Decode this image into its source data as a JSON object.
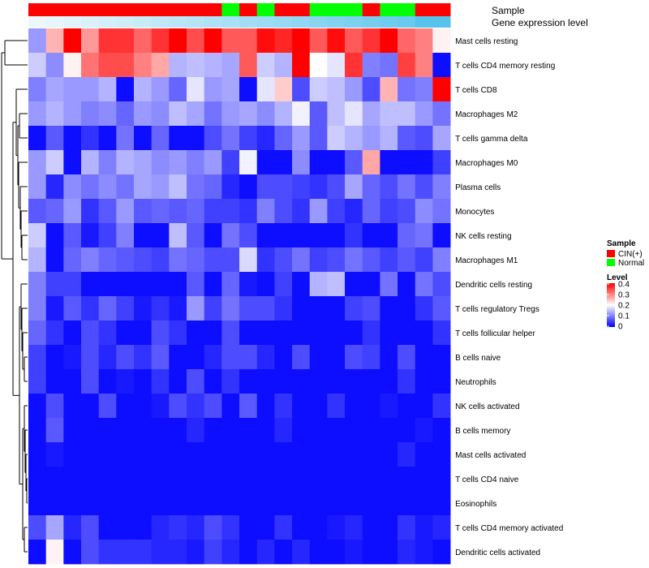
{
  "chart_data": {
    "type": "heatmap",
    "annotation_tracks": [
      {
        "name": "Sample",
        "values": [
          "CIN(+)",
          "CIN(+)",
          "CIN(+)",
          "CIN(+)",
          "CIN(+)",
          "CIN(+)",
          "CIN(+)",
          "CIN(+)",
          "CIN(+)",
          "CIN(+)",
          "CIN(+)",
          "Normal",
          "CIN(+)",
          "Normal",
          "CIN(+)",
          "CIN(+)",
          "Normal",
          "Normal",
          "Normal",
          "CIN(+)",
          "Normal",
          "Normal",
          "CIN(+)",
          "CIN(+)"
        ]
      },
      {
        "name": "Gene expression level",
        "values": [
          0.05,
          0.08,
          0.12,
          0.16,
          0.2,
          0.24,
          0.28,
          0.32,
          0.36,
          0.4,
          0.44,
          0.48,
          0.52,
          0.56,
          0.6,
          0.64,
          0.68,
          0.72,
          0.76,
          0.8,
          0.84,
          0.88,
          1.0,
          1.0
        ]
      }
    ],
    "rows": [
      "Mast cells resting",
      "T cells CD4 memory resting",
      "T cells CD8",
      "Macrophages M2",
      "T cells gamma delta",
      "Macrophages M0",
      "Plasma cells",
      "Monocytes",
      "NK cells resting",
      "Macrophages M1",
      "Dendritic cells resting",
      "T cells regulatory  Tregs",
      "T cells follicular helper",
      "B cells naive",
      "Neutrophils",
      "NK cells activated",
      "B cells memory",
      "Mast cells activated",
      "T cells CD4 naive",
      "Eosinophils",
      "T cells CD4 memory activated",
      "Dendritic cells activated"
    ],
    "values": [
      [
        0.12,
        0.26,
        0.4,
        0.28,
        0.36,
        0.36,
        0.32,
        0.36,
        0.4,
        0.34,
        0.4,
        0.33,
        0.33,
        0.39,
        0.37,
        0.41,
        0.33,
        0.39,
        0.33,
        0.36,
        0.4,
        0.32,
        0.3,
        0.21
      ],
      [
        0.16,
        0.11,
        0.21,
        0.31,
        0.34,
        0.34,
        0.3,
        0.27,
        0.14,
        0.15,
        0.14,
        0.13,
        0.33,
        0.16,
        0.14,
        0.4,
        0.2,
        0.18,
        0.36,
        0.1,
        0.09,
        0.35,
        0.3,
        0.01
      ],
      [
        0.1,
        0.13,
        0.12,
        0.12,
        0.14,
        0.01,
        0.14,
        0.12,
        0.08,
        0.18,
        0.12,
        0.13,
        0.01,
        0.18,
        0.24,
        0.06,
        0.16,
        0.15,
        0.12,
        0.06,
        0.26,
        0.09,
        0.1,
        0.4
      ],
      [
        0.12,
        0.14,
        0.12,
        0.1,
        0.11,
        0.08,
        0.12,
        0.11,
        0.15,
        0.13,
        0.09,
        0.12,
        0.13,
        0.11,
        0.14,
        0.19,
        0.07,
        0.15,
        0.18,
        0.13,
        0.15,
        0.15,
        0.12,
        0.09
      ],
      [
        0.01,
        0.07,
        0.01,
        0.04,
        0.01,
        0.09,
        0.01,
        0.08,
        0.01,
        0.01,
        0.06,
        0.09,
        0.05,
        0.03,
        0.08,
        0.12,
        0.07,
        0.16,
        0.14,
        0.12,
        0.14,
        0.07,
        0.06,
        0.13
      ],
      [
        0.12,
        0.16,
        0.01,
        0.14,
        0.1,
        0.14,
        0.13,
        0.11,
        0.12,
        0.1,
        0.12,
        0.05,
        0.19,
        0.01,
        0.01,
        0.11,
        0.01,
        0.01,
        0.07,
        0.27,
        0.01,
        0.01,
        0.01,
        0.05
      ],
      [
        0.12,
        0.03,
        0.11,
        0.09,
        0.11,
        0.09,
        0.13,
        0.12,
        0.15,
        0.09,
        0.08,
        0.03,
        0.01,
        0.06,
        0.06,
        0.05,
        0.04,
        0.06,
        0.13,
        0.08,
        0.06,
        0.09,
        0.06,
        0.1
      ],
      [
        0.07,
        0.08,
        0.12,
        0.04,
        0.07,
        0.12,
        0.07,
        0.08,
        0.07,
        0.08,
        0.05,
        0.05,
        0.04,
        0.1,
        0.06,
        0.04,
        0.12,
        0.05,
        0.03,
        0.08,
        0.05,
        0.06,
        0.11,
        0.09
      ],
      [
        0.16,
        0.01,
        0.07,
        0.02,
        0.05,
        0.1,
        0.01,
        0.01,
        0.15,
        0.07,
        0.01,
        0.09,
        0.06,
        0.01,
        0.01,
        0.01,
        0.01,
        0.01,
        0.04,
        0.01,
        0.01,
        0.08,
        0.09,
        0.01
      ],
      [
        0.14,
        0.01,
        0.08,
        0.1,
        0.08,
        0.07,
        0.06,
        0.05,
        0.09,
        0.08,
        0.06,
        0.06,
        0.17,
        0.04,
        0.06,
        0.09,
        0.05,
        0.06,
        0.09,
        0.07,
        0.05,
        0.07,
        0.05,
        0.1
      ],
      [
        0.1,
        0.05,
        0.05,
        0.01,
        0.01,
        0.01,
        0.01,
        0.01,
        0.01,
        0.07,
        0.01,
        0.08,
        0.02,
        0.01,
        0.05,
        0.01,
        0.14,
        0.15,
        0.01,
        0.01,
        0.09,
        0.01,
        0.09,
        0.06
      ],
      [
        0.1,
        0.02,
        0.07,
        0.04,
        0.08,
        0.05,
        0.02,
        0.04,
        0.02,
        0.12,
        0.05,
        0.09,
        0.06,
        0.06,
        0.04,
        0.01,
        0.01,
        0.01,
        0.05,
        0.06,
        0.01,
        0.01,
        0.04,
        0.07
      ],
      [
        0.08,
        0.04,
        0.01,
        0.06,
        0.04,
        0.01,
        0.01,
        0.06,
        0.04,
        0.01,
        0.01,
        0.06,
        0.01,
        0.01,
        0.01,
        0.01,
        0.01,
        0.01,
        0.01,
        0.04,
        0.01,
        0.01,
        0.01,
        0.04
      ],
      [
        0.05,
        0.01,
        0.02,
        0.06,
        0.03,
        0.06,
        0.04,
        0.07,
        0.01,
        0.01,
        0.03,
        0.06,
        0.06,
        0.03,
        0.01,
        0.06,
        0.01,
        0.01,
        0.06,
        0.05,
        0.01,
        0.06,
        0.01,
        0.01
      ],
      [
        0.05,
        0.01,
        0.01,
        0.06,
        0.01,
        0.02,
        0.01,
        0.04,
        0.01,
        0.06,
        0.01,
        0.04,
        0.01,
        0.01,
        0.01,
        0.01,
        0.01,
        0.01,
        0.01,
        0.01,
        0.01,
        0.04,
        0.01,
        0.01
      ],
      [
        0.01,
        0.06,
        0.01,
        0.01,
        0.06,
        0.01,
        0.01,
        0.02,
        0.06,
        0.04,
        0.06,
        0.01,
        0.07,
        0.01,
        0.04,
        0.01,
        0.01,
        0.04,
        0.01,
        0.01,
        0.02,
        0.01,
        0.01,
        0.04
      ],
      [
        0.01,
        0.07,
        0.01,
        0.01,
        0.01,
        0.01,
        0.01,
        0.01,
        0.01,
        0.03,
        0.01,
        0.01,
        0.01,
        0.01,
        0.03,
        0.01,
        0.01,
        0.01,
        0.01,
        0.01,
        0.01,
        0.01,
        0.02,
        0.01
      ],
      [
        0.01,
        0.02,
        0.01,
        0.01,
        0.01,
        0.01,
        0.01,
        0.01,
        0.01,
        0.01,
        0.01,
        0.01,
        0.01,
        0.01,
        0.01,
        0.01,
        0.01,
        0.01,
        0.01,
        0.01,
        0.01,
        0.03,
        0.01,
        0.01
      ],
      [
        0.01,
        0.01,
        0.01,
        0.01,
        0.01,
        0.01,
        0.01,
        0.01,
        0.01,
        0.01,
        0.01,
        0.01,
        0.01,
        0.01,
        0.01,
        0.01,
        0.01,
        0.01,
        0.01,
        0.01,
        0.01,
        0.01,
        0.01,
        0.01
      ],
      [
        0.01,
        0.01,
        0.01,
        0.01,
        0.01,
        0.01,
        0.01,
        0.01,
        0.01,
        0.01,
        0.01,
        0.01,
        0.01,
        0.01,
        0.01,
        0.01,
        0.01,
        0.01,
        0.01,
        0.01,
        0.01,
        0.01,
        0.01,
        0.01
      ],
      [
        0.06,
        0.13,
        0.03,
        0.06,
        0.01,
        0.01,
        0.01,
        0.03,
        0.04,
        0.03,
        0.06,
        0.04,
        0.01,
        0.01,
        0.04,
        0.01,
        0.01,
        0.02,
        0.03,
        0.01,
        0.01,
        0.04,
        0.02,
        0.03
      ],
      [
        0.01,
        0.21,
        0.01,
        0.06,
        0.04,
        0.04,
        0.04,
        0.03,
        0.03,
        0.02,
        0.05,
        0.03,
        0.01,
        0.03,
        0.01,
        0.03,
        0.01,
        0.01,
        0.02,
        0.01,
        0.01,
        0.03,
        0.02,
        0.01
      ]
    ],
    "color_scale": {
      "low": "#0000ff",
      "mid": "#ffffff",
      "high": "#ff0000",
      "domain": [
        0,
        0.4
      ]
    },
    "legend": {
      "sample": {
        "title": "Sample",
        "entries": [
          {
            "label": "CIN(+)",
            "color": "#ff0000"
          },
          {
            "label": "Normal",
            "color": "#00ff00"
          }
        ]
      },
      "level": {
        "title": "Level",
        "ticks": [
          "0.4",
          "0.3",
          "0.2",
          "0.1",
          "0"
        ]
      }
    },
    "expression_colors": {
      "low": "#f4fafd",
      "high": "#56c3ec"
    },
    "dendrogram": "hierarchical clustering of rows (left)"
  }
}
